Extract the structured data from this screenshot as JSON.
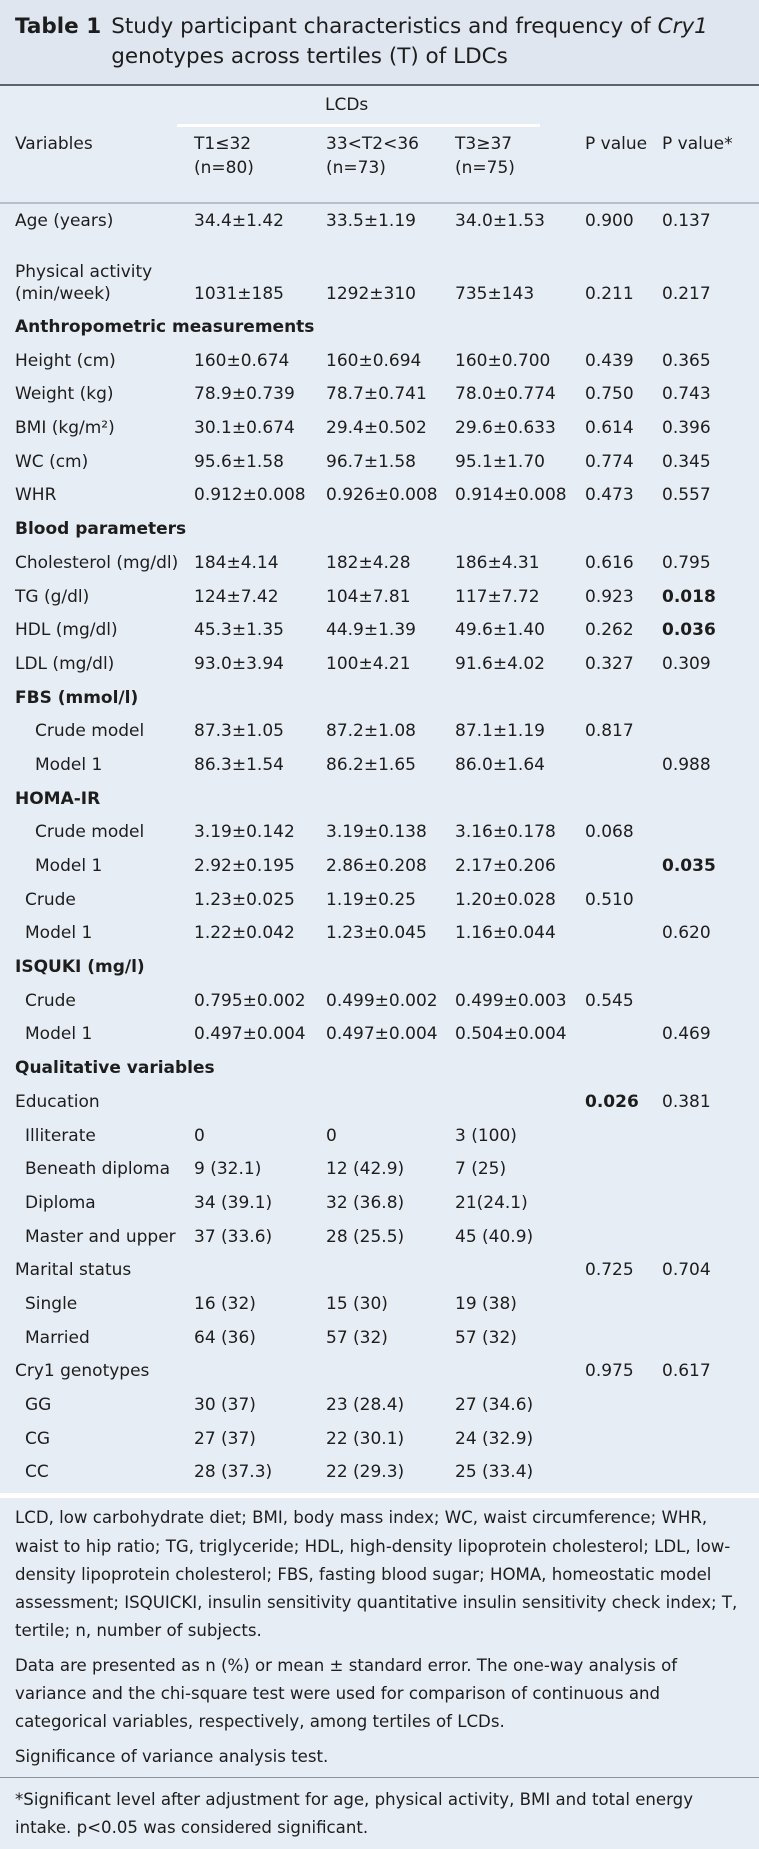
{
  "header": {
    "label": "Table 1",
    "title_parts": [
      "Study participant characteristics and frequency of ",
      "Cry1",
      " genotypes across tertiles (T) of LDCs"
    ]
  },
  "table": {
    "group_label": "LCDs",
    "columns": [
      "Variables",
      [
        "T1≤32",
        "(n=80)"
      ],
      [
        "33<T2<36",
        "(n=73)"
      ],
      [
        "T3≥37",
        "(n=75)"
      ],
      "P value",
      "P value*"
    ],
    "rows": [
      {
        "cells": [
          "Age (years)",
          "34.4±1.42",
          "33.5±1.19",
          "34.0±1.53",
          "0.900",
          "0.137"
        ],
        "indent": 0
      },
      {
        "cells": [
          [
            "Physical activity",
            "(min/week)"
          ],
          "1031±185",
          "1292±310",
          "735±143",
          "0.211",
          "0.217"
        ],
        "indent": 0
      },
      {
        "cells": [
          "Anthropometric measurements"
        ],
        "section": true
      },
      {
        "cells": [
          "Height (cm)",
          "160±0.674",
          "160±0.694",
          "160±0.700",
          "0.439",
          "0.365"
        ],
        "indent": 0
      },
      {
        "cells": [
          "Weight (kg)",
          "78.9±0.739",
          "78.7±0.741",
          "78.0±0.774",
          "0.750",
          "0.743"
        ],
        "indent": 0
      },
      {
        "cells": [
          "BMI (kg/m²)",
          "30.1±0.674",
          "29.4±0.502",
          "29.6±0.633",
          "0.614",
          "0.396"
        ],
        "indent": 0
      },
      {
        "cells": [
          "WC (cm)",
          "95.6±1.58",
          "96.7±1.58",
          "95.1±1.70",
          "0.774",
          "0.345"
        ],
        "indent": 0
      },
      {
        "cells": [
          "WHR",
          "0.912±0.008",
          "0.926±0.008",
          "0.914±0.008",
          "0.473",
          "0.557"
        ],
        "indent": 0
      },
      {
        "cells": [
          "Blood parameters"
        ],
        "section": true
      },
      {
        "cells": [
          "Cholesterol (mg/dl)",
          "184±4.14",
          "182±4.28",
          "186±4.31",
          "0.616",
          "0.795"
        ],
        "indent": 0
      },
      {
        "cells": [
          "TG (g/dl)",
          "124±7.42",
          "104±7.81",
          "117±7.72",
          "0.923",
          "0.018"
        ],
        "indent": 0,
        "bold": [
          5
        ]
      },
      {
        "cells": [
          "HDL (mg/dl)",
          "45.3±1.35",
          "44.9±1.39",
          "49.6±1.40",
          "0.262",
          "0.036"
        ],
        "indent": 0,
        "bold": [
          5
        ]
      },
      {
        "cells": [
          "LDL (mg/dl)",
          "93.0±3.94",
          "100±4.21",
          "91.6±4.02",
          "0.327",
          "0.309"
        ],
        "indent": 0
      },
      {
        "cells": [
          "FBS (mmol/l)"
        ],
        "section": true
      },
      {
        "cells": [
          "Crude model",
          "87.3±1.05",
          "87.2±1.08",
          "87.1±1.19",
          "0.817",
          null
        ],
        "indent": 2
      },
      {
        "cells": [
          "Model 1",
          "86.3±1.54",
          "86.2±1.65",
          "86.0±1.64",
          null,
          "0.988"
        ],
        "indent": 2
      },
      {
        "cells": [
          "HOMA-IR"
        ],
        "section": true
      },
      {
        "cells": [
          "Crude model",
          "3.19±0.142",
          "3.19±0.138",
          "3.16±0.178",
          "0.068",
          null
        ],
        "indent": 2
      },
      {
        "cells": [
          "Model 1",
          "2.92±0.195",
          "2.86±0.208",
          "2.17±0.206",
          null,
          "0.035"
        ],
        "indent": 2,
        "bold": [
          5
        ]
      },
      {
        "cells": [
          "Crude",
          "1.23±0.025",
          "1.19±0.25",
          "1.20±0.028",
          "0.510",
          null
        ],
        "indent": 1
      },
      {
        "cells": [
          "Model 1",
          "1.22±0.042",
          "1.23±0.045",
          "1.16±0.044",
          null,
          "0.620"
        ],
        "indent": 1
      },
      {
        "cells": [
          "ISQUKI (mg/l)"
        ],
        "section": true
      },
      {
        "cells": [
          "Crude",
          "0.795±0.002",
          "0.499±0.002",
          "0.499±0.003",
          "0.545",
          null
        ],
        "indent": 1
      },
      {
        "cells": [
          "Model 1",
          "0.497±0.004",
          "0.497±0.004",
          "0.504±0.004",
          null,
          "0.469"
        ],
        "indent": 1
      },
      {
        "cells": [
          "Qualitative variables"
        ],
        "section": true
      },
      {
        "cells": [
          "Education",
          null,
          null,
          null,
          "0.026",
          "0.381"
        ],
        "indent": 0,
        "bold": [
          4
        ]
      },
      {
        "cells": [
          "Illiterate",
          "0",
          "0",
          "3 (100)",
          null,
          null
        ],
        "indent": 1
      },
      {
        "cells": [
          "Beneath diploma",
          "9 (32.1)",
          "12 (42.9)",
          "7 (25)",
          null,
          null
        ],
        "indent": 1
      },
      {
        "cells": [
          "Diploma",
          "34 (39.1)",
          "32 (36.8)",
          "21(24.1)",
          null,
          null
        ],
        "indent": 1
      },
      {
        "cells": [
          "Master and upper",
          "37 (33.6)",
          "28 (25.5)",
          "45 (40.9)",
          null,
          null
        ],
        "indent": 1
      },
      {
        "cells": [
          "Marital status",
          null,
          null,
          null,
          "0.725",
          "0.704"
        ],
        "indent": 0
      },
      {
        "cells": [
          "Single",
          "16 (32)",
          "15 (30)",
          "19 (38)",
          null,
          null
        ],
        "indent": 1
      },
      {
        "cells": [
          "Married",
          "64 (36)",
          "57 (32)",
          "57 (32)",
          null,
          null
        ],
        "indent": 1
      },
      {
        "cells": [
          "Cry1 genotypes",
          null,
          null,
          null,
          "0.975",
          "0.617"
        ],
        "indent": 0
      },
      {
        "cells": [
          "GG",
          "30 (37)",
          "23 (28.4)",
          "27 (34.6)",
          null,
          null
        ],
        "indent": 1
      },
      {
        "cells": [
          "CG",
          "27 (37)",
          "22 (30.1)",
          "24 (32.9)",
          null,
          null
        ],
        "indent": 1
      },
      {
        "cells": [
          "CC",
          "28 (37.3)",
          "22 (29.3)",
          "25 (33.4)",
          null,
          null
        ],
        "indent": 1
      }
    ]
  },
  "footnotes": [
    "LCD, low carbohydrate diet; BMI, body mass index; WC, waist circumference; WHR, waist to hip ratio; TG, triglyceride; HDL, high-density lipoprotein cholesterol; LDL, low-density lipoprotein cholesterol; FBS, fasting blood sugar; HOMA, homeostatic model assessment; ISQUICKI, insulin sensitivity quantitative insulin sensitivity check index; T, tertile; n, number of subjects.",
    "Data are presented as n (%) or mean ± standard error. The one-way analysis of variance and the chi-square test were used for comparison of continuous and categorical variables, respectively, among tertiles of LCDs.",
    "Significance of variance analysis test."
  ],
  "footnote_star": "*Significant level after adjustment for age, physical activity, BMI and total energy intake. p<0.05 was considered significant."
}
